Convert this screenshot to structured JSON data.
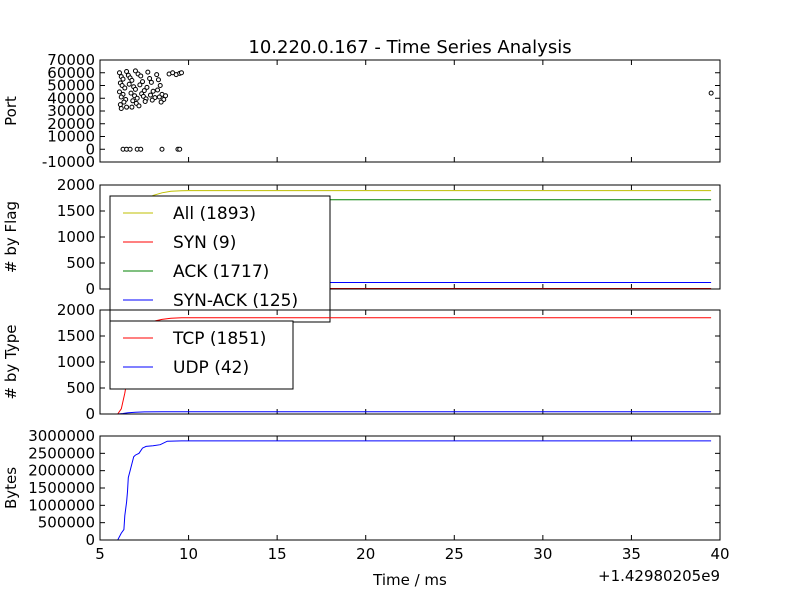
{
  "chart_data": {
    "type": "line",
    "title": "10.220.0.167 - Time Series Analysis",
    "xlabel": "Time / ms",
    "x_offset_label": "+1.42980205e9",
    "xlim": [
      5,
      40
    ],
    "x_ticks": [
      5,
      10,
      15,
      20,
      25,
      30,
      35,
      40
    ],
    "panels": [
      {
        "id": "port",
        "type": "scatter",
        "ylabel": "Port",
        "ylim": [
          -10000,
          70000
        ],
        "y_ticks": [
          -10000,
          0,
          10000,
          20000,
          30000,
          40000,
          50000,
          60000,
          70000
        ],
        "legend": null,
        "series": [
          {
            "color": "#000000",
            "points": [
              [
                6.1,
                60000
              ],
              [
                6.2,
                57000
              ],
              [
                6.3,
                55000
              ],
              [
                6.15,
                52000
              ],
              [
                6.25,
                50000
              ],
              [
                6.4,
                48000
              ],
              [
                6.1,
                45000
              ],
              [
                6.3,
                43000
              ],
              [
                6.2,
                41000
              ],
              [
                6.45,
                39000
              ],
              [
                6.35,
                37000
              ],
              [
                6.15,
                35000
              ],
              [
                6.5,
                33000
              ],
              [
                6.6,
                58000
              ],
              [
                6.7,
                56000
              ],
              [
                6.8,
                54000
              ],
              [
                6.65,
                51000
              ],
              [
                6.9,
                49000
              ],
              [
                7.0,
                47000
              ],
              [
                6.75,
                44000
              ],
              [
                6.95,
                42000
              ],
              [
                7.1,
                40000
              ],
              [
                6.85,
                38000
              ],
              [
                7.05,
                36000
              ],
              [
                7.2,
                34000
              ],
              [
                7.15,
                59000
              ],
              [
                7.3,
                57500
              ],
              [
                7.4,
                53000
              ],
              [
                7.25,
                50500
              ],
              [
                7.5,
                46000
              ],
              [
                7.35,
                43500
              ],
              [
                7.45,
                41500
              ],
              [
                7.6,
                39500
              ],
              [
                7.55,
                37500
              ],
              [
                7.7,
                60500
              ],
              [
                7.8,
                55500
              ],
              [
                7.9,
                52500
              ],
              [
                7.65,
                48500
              ],
              [
                8.0,
                45500
              ],
              [
                7.85,
                42500
              ],
              [
                8.1,
                40500
              ],
              [
                7.95,
                38500
              ],
              [
                8.2,
                58500
              ],
              [
                8.3,
                54500
              ],
              [
                8.4,
                50000
              ],
              [
                8.25,
                46500
              ],
              [
                8.5,
                43000
              ],
              [
                8.35,
                41000
              ],
              [
                8.6,
                39000
              ],
              [
                8.45,
                37000
              ],
              [
                8.7,
                42000
              ],
              [
                8.9,
                59000
              ],
              [
                9.1,
                60000
              ],
              [
                9.3,
                58500
              ],
              [
                9.5,
                59500
              ],
              [
                9.6,
                60000
              ],
              [
                6.5,
                61000
              ],
              [
                7.0,
                61500
              ],
              [
                6.2,
                32000
              ],
              [
                6.8,
                33000
              ],
              [
                6.3,
                0
              ],
              [
                6.5,
                0
              ],
              [
                6.7,
                0
              ],
              [
                7.1,
                0
              ],
              [
                7.3,
                0
              ],
              [
                8.5,
                0
              ],
              [
                9.4,
                0
              ],
              [
                9.5,
                0
              ],
              [
                39.5,
                44000
              ]
            ]
          }
        ]
      },
      {
        "id": "flags",
        "type": "line",
        "ylabel": "# by Flag",
        "ylim": [
          0,
          2000
        ],
        "y_ticks": [
          0,
          500,
          1000,
          1500,
          2000
        ],
        "legend": "upper-left",
        "series": [
          {
            "name": "All (1893)",
            "color": "#bfbf00",
            "points": [
              [
                6.0,
                0
              ],
              [
                6.2,
                150
              ],
              [
                6.4,
                500
              ],
              [
                6.6,
                900
              ],
              [
                6.8,
                1200
              ],
              [
                7.0,
                1450
              ],
              [
                7.3,
                1620
              ],
              [
                7.6,
                1720
              ],
              [
                8.0,
                1800
              ],
              [
                8.5,
                1850
              ],
              [
                9.0,
                1880
              ],
              [
                9.6,
                1890
              ],
              [
                10.0,
                1893
              ],
              [
                39.5,
                1893
              ]
            ]
          },
          {
            "name": "SYN (9)",
            "color": "#ff0000",
            "points": [
              [
                6.0,
                0
              ],
              [
                9.6,
                9
              ],
              [
                39.5,
                9
              ]
            ]
          },
          {
            "name": "ACK (1717)",
            "color": "#008000",
            "points": [
              [
                6.0,
                0
              ],
              [
                6.3,
                300
              ],
              [
                6.6,
                800
              ],
              [
                7.0,
                1300
              ],
              [
                7.5,
                1600
              ],
              [
                8.0,
                1690
              ],
              [
                9.6,
                1717
              ],
              [
                39.5,
                1717
              ]
            ]
          },
          {
            "name": "SYN-ACK (125)",
            "color": "#0000ff",
            "points": [
              [
                6.0,
                0
              ],
              [
                7.0,
                80
              ],
              [
                8.0,
                110
              ],
              [
                9.6,
                125
              ],
              [
                39.5,
                125
              ]
            ]
          }
        ]
      },
      {
        "id": "types",
        "type": "line",
        "ylabel": "# by Type",
        "ylim": [
          0,
          2000
        ],
        "y_ticks": [
          0,
          500,
          1000,
          1500,
          2000
        ],
        "legend": "upper-left",
        "series": [
          {
            "name": "TCP (1851)",
            "color": "#ff0000",
            "points": [
              [
                6.0,
                0
              ],
              [
                6.2,
                100
              ],
              [
                6.4,
                400
              ],
              [
                6.6,
                800
              ],
              [
                6.8,
                1150
              ],
              [
                7.0,
                1400
              ],
              [
                7.3,
                1600
              ],
              [
                7.6,
                1700
              ],
              [
                8.0,
                1780
              ],
              [
                8.5,
                1820
              ],
              [
                9.0,
                1840
              ],
              [
                9.6,
                1850
              ],
              [
                10.0,
                1851
              ],
              [
                39.5,
                1851
              ]
            ]
          },
          {
            "name": "UDP (42)",
            "color": "#0000ff",
            "points": [
              [
                6.0,
                0
              ],
              [
                6.3,
                10
              ],
              [
                6.6,
                25
              ],
              [
                7.0,
                35
              ],
              [
                7.5,
                40
              ],
              [
                8.5,
                42
              ],
              [
                39.5,
                42
              ]
            ]
          }
        ]
      },
      {
        "id": "bytes",
        "type": "line",
        "ylabel": "Bytes",
        "ylim": [
          0,
          3000000
        ],
        "y_ticks": [
          0,
          500000,
          1000000,
          1500000,
          2000000,
          2500000,
          3000000
        ],
        "legend": null,
        "series": [
          {
            "color": "#0000ff",
            "points": [
              [
                6.0,
                0
              ],
              [
                6.2,
                200000
              ],
              [
                6.35,
                300000
              ],
              [
                6.4,
                700000
              ],
              [
                6.5,
                1100000
              ],
              [
                6.55,
                1400000
              ],
              [
                6.6,
                1800000
              ],
              [
                6.7,
                2000000
              ],
              [
                6.8,
                2200000
              ],
              [
                6.9,
                2400000
              ],
              [
                7.0,
                2450000
              ],
              [
                7.2,
                2500000
              ],
              [
                7.4,
                2650000
              ],
              [
                7.6,
                2700000
              ],
              [
                8.0,
                2720000
              ],
              [
                8.4,
                2750000
              ],
              [
                8.8,
                2850000
              ],
              [
                9.6,
                2860000
              ],
              [
                10.0,
                2860000
              ],
              [
                39.5,
                2860000
              ]
            ]
          }
        ]
      }
    ]
  }
}
